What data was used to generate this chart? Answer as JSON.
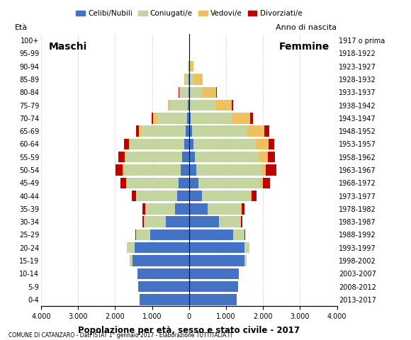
{
  "age_groups": [
    "0-4",
    "5-9",
    "10-14",
    "15-19",
    "20-24",
    "25-29",
    "30-34",
    "35-39",
    "40-44",
    "45-49",
    "50-54",
    "55-59",
    "60-64",
    "65-69",
    "70-74",
    "75-79",
    "80-84",
    "85-89",
    "90-94",
    "95-99",
    "100+"
  ],
  "birth_years": [
    "2013-2017",
    "2008-2012",
    "2003-2007",
    "1998-2002",
    "1993-1997",
    "1988-1992",
    "1983-1987",
    "1978-1982",
    "1973-1977",
    "1968-1972",
    "1963-1967",
    "1958-1962",
    "1953-1957",
    "1948-1952",
    "1943-1947",
    "1938-1942",
    "1933-1937",
    "1928-1932",
    "1923-1927",
    "1918-1922",
    "1917 o prima"
  ],
  "male": {
    "celibe": [
      1330,
      1380,
      1400,
      1530,
      1480,
      1050,
      620,
      370,
      330,
      280,
      230,
      180,
      130,
      90,
      55,
      30,
      20,
      10,
      5,
      0,
      0
    ],
    "coniugato": [
      0,
      0,
      0,
      80,
      200,
      380,
      600,
      800,
      1100,
      1400,
      1530,
      1520,
      1450,
      1200,
      820,
      480,
      220,
      100,
      30,
      0,
      0
    ],
    "vedovo": [
      0,
      0,
      0,
      0,
      0,
      0,
      5,
      5,
      10,
      20,
      30,
      40,
      50,
      60,
      90,
      60,
      30,
      15,
      5,
      0,
      0
    ],
    "divorziato": [
      0,
      0,
      0,
      0,
      5,
      20,
      40,
      80,
      110,
      160,
      200,
      170,
      130,
      90,
      50,
      10,
      5,
      0,
      0,
      0,
      0
    ]
  },
  "female": {
    "nubile": [
      1290,
      1330,
      1350,
      1500,
      1500,
      1200,
      800,
      500,
      350,
      260,
      200,
      150,
      110,
      80,
      50,
      30,
      20,
      10,
      5,
      0,
      0
    ],
    "coniugata": [
      0,
      0,
      0,
      50,
      130,
      300,
      600,
      900,
      1300,
      1650,
      1750,
      1750,
      1700,
      1500,
      1100,
      680,
      320,
      130,
      40,
      5,
      0
    ],
    "vedova": [
      0,
      0,
      0,
      0,
      0,
      5,
      10,
      20,
      40,
      80,
      130,
      230,
      330,
      450,
      500,
      450,
      400,
      220,
      80,
      10,
      0
    ],
    "divorziata": [
      0,
      0,
      0,
      0,
      5,
      20,
      40,
      80,
      130,
      200,
      280,
      190,
      160,
      130,
      80,
      30,
      10,
      5,
      0,
      0,
      0
    ]
  },
  "colors": {
    "celibe": "#4472c4",
    "coniugato": "#c5d5a0",
    "vedovo": "#f0c060",
    "divorziato": "#c00000"
  },
  "xlim": 4000,
  "xlabel": "Popolazione per età, sesso e stato civile - 2017",
  "ylabel_left": "Età",
  "ylabel_right": "Anno di nascita",
  "footnote": "COMUNE DI CATANZARO - Dati ISTAT 1° gennaio 2017 - Elaborazione TUTTITALIA.IT",
  "legend_labels": [
    "Celibi/Nubili",
    "Coniugati/e",
    "Vedovi/e",
    "Divorziati/e"
  ],
  "maschi_label": "Maschi",
  "femmine_label": "Femmine"
}
